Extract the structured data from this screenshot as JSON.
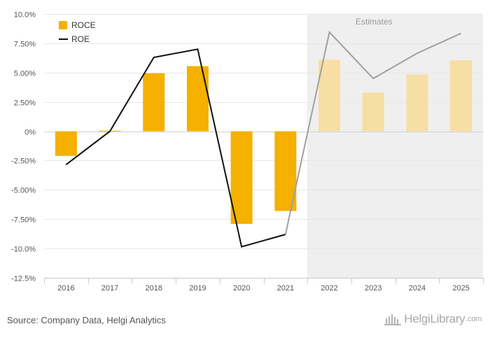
{
  "chart_data": {
    "type": "bar",
    "categories": [
      "2016",
      "2017",
      "2018",
      "2019",
      "2020",
      "2021",
      "2022",
      "2023",
      "2024",
      "2025"
    ],
    "series": [
      {
        "name": "ROCE",
        "type": "bar",
        "color": "#f5b000",
        "values": [
          -2.1,
          0.05,
          4.95,
          5.55,
          -7.9,
          -6.8,
          6.1,
          3.3,
          4.85,
          6.05
        ]
      },
      {
        "name": "ROE",
        "type": "line",
        "color": "#111111",
        "values": [
          -2.85,
          0.0,
          6.3,
          7.0,
          -9.85,
          -8.8,
          8.45,
          4.5,
          6.65,
          8.35
        ]
      }
    ],
    "estimate_start_index": 6,
    "estimate_label": "Estimates",
    "estimate_bar_color": "#f7dea3",
    "estimate_line_color": "#a0a0a0",
    "estimate_band_color": "#efefef",
    "ylim": [
      -12.5,
      10.0
    ],
    "yticks": [
      -12.5,
      -10.0,
      -7.5,
      -5.0,
      -2.5,
      0,
      2.5,
      5.0,
      7.5,
      10.0
    ],
    "ytick_labels": [
      "-12.5%",
      "-10.0%",
      "-7.50%",
      "-5.00%",
      "-2.50%",
      "0%",
      "2.50%",
      "5.00%",
      "7.50%",
      "10.0%"
    ],
    "title": "",
    "xlabel": "",
    "ylabel": "",
    "grid": true,
    "legend_position": "top-left"
  },
  "footer": {
    "source": "Source: Company Data, Helgi Analytics",
    "logo_part1": "Helgi",
    "logo_part2": "Library",
    "logo_suffix": ".com",
    "logo_icon": "library-building-icon"
  }
}
